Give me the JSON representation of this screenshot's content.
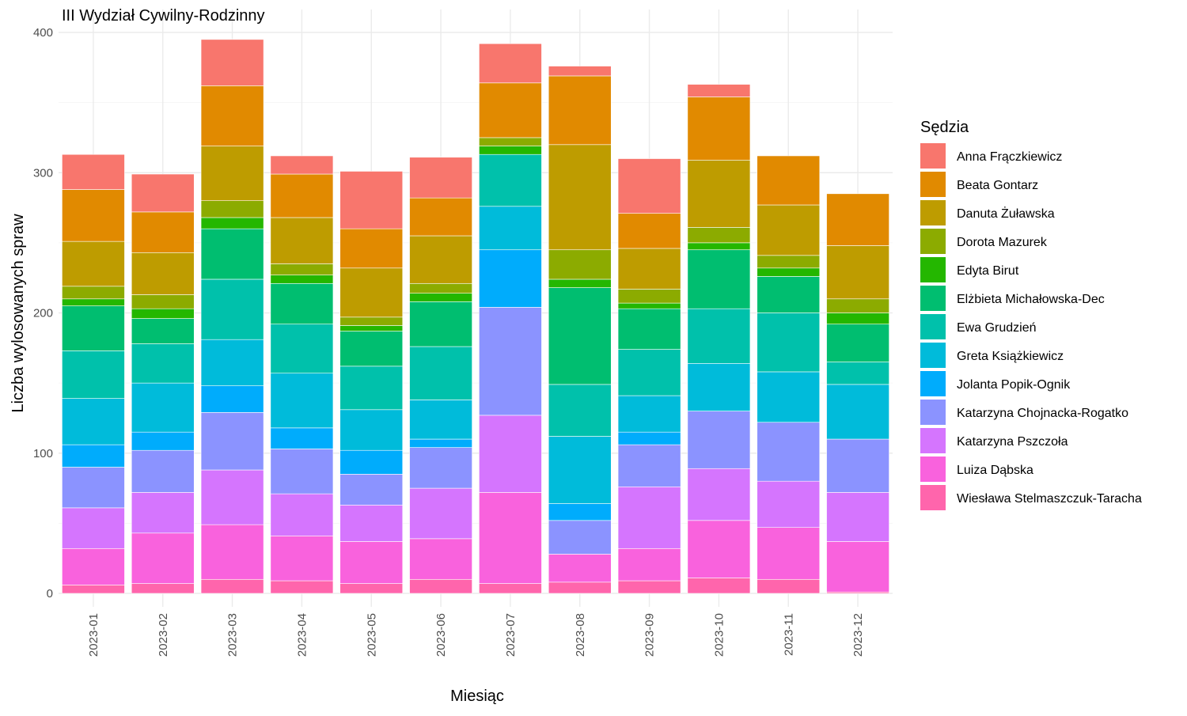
{
  "chart_data": {
    "type": "bar",
    "stacked": true,
    "title": "III Wydział Cywilny-Rodzinny",
    "xlabel": "Miesiąc",
    "ylabel": "Liczba wylosowanych spraw",
    "ylim": [
      0,
      400
    ],
    "yticks": [
      0,
      100,
      200,
      300,
      400
    ],
    "grid": true,
    "legend_title": "Sędzia",
    "legend_position": "right",
    "categories": [
      "2023-01",
      "2023-02",
      "2023-03",
      "2023-04",
      "2023-05",
      "2023-06",
      "2023-07",
      "2023-08",
      "2023-09",
      "2023-10",
      "2023-11",
      "2023-12"
    ],
    "series": [
      {
        "name": "Anna Frączkiewicz",
        "color": "#F8766D",
        "values": [
          25,
          27,
          33,
          13,
          41,
          29,
          28,
          7,
          39,
          9,
          0,
          0
        ]
      },
      {
        "name": "Beata Gontarz",
        "color": "#E18A00",
        "values": [
          37,
          29,
          43,
          31,
          28,
          27,
          39,
          49,
          25,
          45,
          35,
          37
        ]
      },
      {
        "name": "Danuta Żuławska",
        "color": "#BE9C00",
        "values": [
          32,
          30,
          39,
          33,
          35,
          34,
          0,
          75,
          29,
          48,
          36,
          38
        ]
      },
      {
        "name": "Dorota Mazurek",
        "color": "#8CAB00",
        "values": [
          9,
          10,
          12,
          8,
          6,
          7,
          6,
          21,
          10,
          11,
          9,
          10
        ]
      },
      {
        "name": "Edyta Birut",
        "color": "#24B700",
        "values": [
          5,
          7,
          8,
          6,
          4,
          6,
          6,
          6,
          4,
          5,
          6,
          8
        ]
      },
      {
        "name": "Elżbieta Michałowska-Dec",
        "color": "#00BE70",
        "values": [
          32,
          18,
          36,
          29,
          25,
          32,
          0,
          69,
          29,
          42,
          26,
          27
        ]
      },
      {
        "name": "Ewa Grudzień",
        "color": "#00C1AB",
        "values": [
          34,
          28,
          43,
          35,
          31,
          38,
          37,
          37,
          33,
          39,
          42,
          16
        ]
      },
      {
        "name": "Greta Książkiewicz",
        "color": "#00BBDA",
        "values": [
          33,
          35,
          33,
          39,
          29,
          28,
          31,
          48,
          26,
          34,
          36,
          39
        ]
      },
      {
        "name": "Jolanta Popik-Ognik",
        "color": "#00ACFC",
        "values": [
          16,
          13,
          19,
          15,
          17,
          6,
          41,
          12,
          9,
          0,
          0,
          0
        ]
      },
      {
        "name": "Katarzyna Chojnacka-Rogatko",
        "color": "#8B93FF",
        "values": [
          29,
          30,
          41,
          32,
          22,
          29,
          77,
          24,
          30,
          41,
          42,
          38
        ]
      },
      {
        "name": "Katarzyna Pszczoła",
        "color": "#D575FE",
        "values": [
          29,
          29,
          39,
          30,
          26,
          36,
          55,
          0,
          44,
          37,
          33,
          35
        ]
      },
      {
        "name": "Luiza Dąbska",
        "color": "#F962DD",
        "values": [
          26,
          36,
          39,
          32,
          30,
          29,
          65,
          20,
          23,
          41,
          37,
          36
        ]
      },
      {
        "name": "Wiesława Stelmaszczuk-Taracha",
        "color": "#FF65AC",
        "values": [
          6,
          7,
          10,
          9,
          7,
          10,
          7,
          8,
          9,
          11,
          10,
          1
        ]
      }
    ]
  }
}
